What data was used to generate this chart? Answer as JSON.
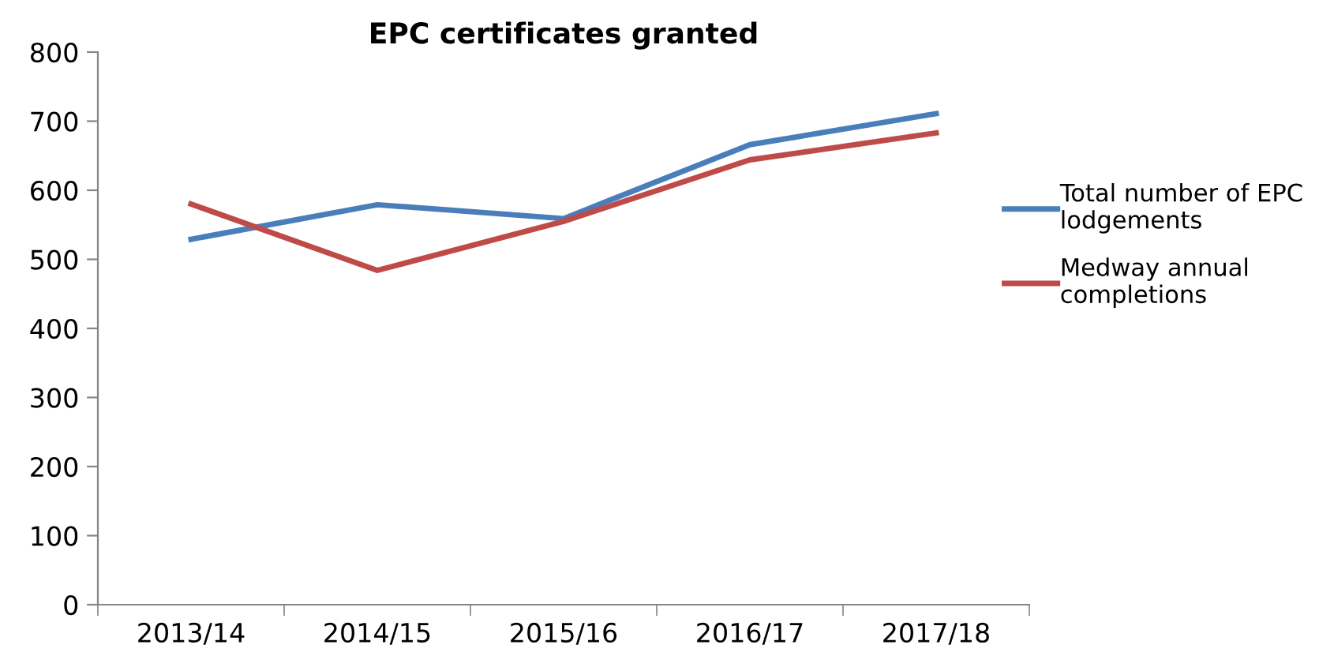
{
  "chart_data": {
    "type": "line",
    "title": "EPC certificates granted",
    "categories": [
      "2013/14",
      "2014/15",
      "2015/16",
      "2016/17",
      "2017/18"
    ],
    "series": [
      {
        "name": "Total number of EPC\nlodgements",
        "color": "#4a7ebb",
        "values": [
          529,
          579,
          559,
          666,
          711
        ]
      },
      {
        "name": "Medway annual\ncompletions",
        "color": "#be4b48",
        "values": [
          580,
          484,
          555,
          644,
          683
        ]
      }
    ],
    "ylim": [
      0,
      800
    ],
    "yticks": [
      0,
      100,
      200,
      300,
      400,
      500,
      600,
      700,
      800
    ],
    "grid": false,
    "legend": "right",
    "marker": "none",
    "line_style": "solid"
  }
}
